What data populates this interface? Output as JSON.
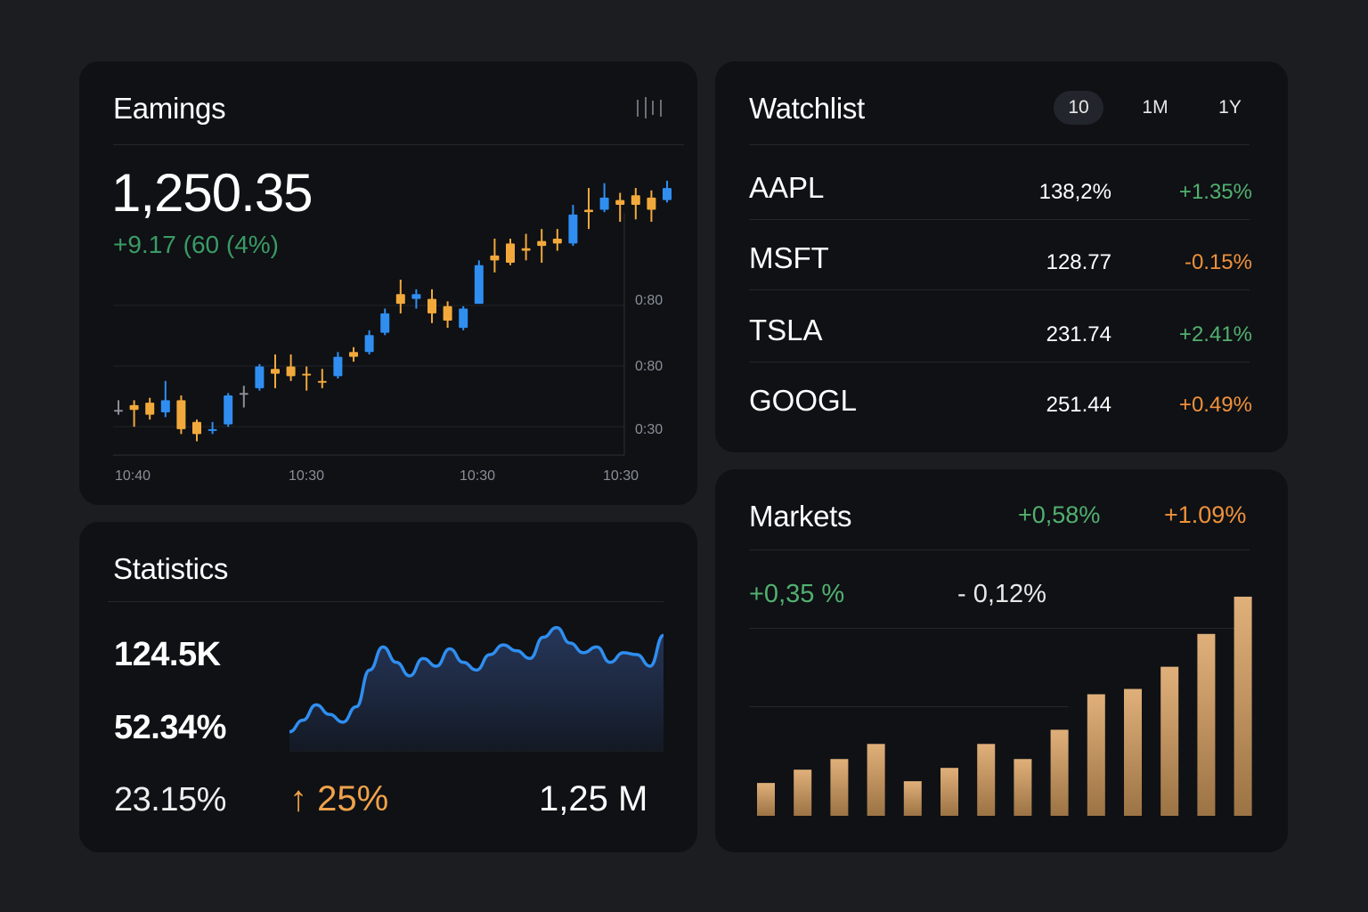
{
  "earnings": {
    "title": "Eamings",
    "menu_icon": "chart-options-icon",
    "price": "1,250.35",
    "change": "+9.17 (60 (4%)",
    "y_labels": [
      "0:80",
      "0:80",
      "0:30"
    ],
    "x_labels": [
      "10:40",
      "10:30",
      "10:30",
      "10:30"
    ]
  },
  "watchlist": {
    "title": "Watchlist",
    "tabs": [
      {
        "label": "10",
        "active": true
      },
      {
        "label": "1M",
        "active": false
      },
      {
        "label": "1Y",
        "active": false
      }
    ],
    "rows": [
      {
        "symbol": "AAPL",
        "price": "138,2%",
        "change": "+1.35%",
        "direction": "up"
      },
      {
        "symbol": "MSFT",
        "price": "128.77",
        "change": "-0.15%",
        "direction": "down"
      },
      {
        "symbol": "TSLA",
        "price": "231.74",
        "change": "+2.41%",
        "direction": "up"
      },
      {
        "symbol": "GOOGL",
        "price": "251.44",
        "change": "+0.49%",
        "direction": "down"
      }
    ]
  },
  "statistics": {
    "title": "Statistics",
    "stat1": "124.5K",
    "stat2": "52.34%",
    "stat3": "23.15%",
    "growth": "↑ 25%",
    "total": "1,25 M"
  },
  "markets": {
    "title": "Markets",
    "head_change_1": "+0,58%",
    "head_change_2": "+1.09%",
    "sub_change_1": "+0,35 %",
    "sub_change_2": "- 0,12%"
  },
  "colors": {
    "background": "#1b1d21",
    "card": "#0f1115",
    "positive": "#52b06f",
    "negative": "#f0913a",
    "candle_up": "#2f8ef0",
    "candle_down": "#f2a93b",
    "bar": "#d6a56a",
    "line": "#2f8ef0"
  },
  "chart_data": [
    {
      "type": "candlestick",
      "title": "Eamings",
      "x": [
        "10:40",
        "10:30",
        "10:30",
        "10:30"
      ],
      "ylim": [
        0,
        100
      ],
      "series": [
        {
          "values": [
            {
              "o": 18,
              "c": 18,
              "h": 22,
              "l": 16,
              "dir": "flat"
            },
            {
              "o": 18,
              "c": 20,
              "h": 22,
              "l": 11,
              "dir": "down"
            },
            {
              "o": 16,
              "c": 21,
              "h": 23,
              "l": 14,
              "dir": "down"
            },
            {
              "o": 17,
              "c": 22,
              "h": 30,
              "l": 15,
              "dir": "up"
            },
            {
              "o": 22,
              "c": 10,
              "h": 24,
              "l": 8,
              "dir": "down"
            },
            {
              "o": 13,
              "c": 8,
              "h": 14,
              "l": 5,
              "dir": "down"
            },
            {
              "o": 10,
              "c": 10,
              "h": 13,
              "l": 8,
              "dir": "up"
            },
            {
              "o": 12,
              "c": 24,
              "h": 25,
              "l": 11,
              "dir": "up"
            },
            {
              "o": 25,
              "c": 25,
              "h": 28,
              "l": 19,
              "dir": "flat"
            },
            {
              "o": 27,
              "c": 36,
              "h": 37,
              "l": 26,
              "dir": "up"
            },
            {
              "o": 35,
              "c": 33,
              "h": 41,
              "l": 27,
              "dir": "down"
            },
            {
              "o": 36,
              "c": 32,
              "h": 41,
              "l": 30,
              "dir": "down"
            },
            {
              "o": 33,
              "c": 33,
              "h": 36,
              "l": 26,
              "dir": "down"
            },
            {
              "o": 30,
              "c": 30,
              "h": 35,
              "l": 27,
              "dir": "down"
            },
            {
              "o": 32,
              "c": 40,
              "h": 42,
              "l": 31,
              "dir": "up"
            },
            {
              "o": 42,
              "c": 40,
              "h": 44,
              "l": 38,
              "dir": "down"
            },
            {
              "o": 42,
              "c": 49,
              "h": 51,
              "l": 41,
              "dir": "up"
            },
            {
              "o": 50,
              "c": 58,
              "h": 60,
              "l": 49,
              "dir": "up"
            },
            {
              "o": 62,
              "c": 66,
              "h": 72,
              "l": 58,
              "dir": "down"
            },
            {
              "o": 66,
              "c": 64,
              "h": 68,
              "l": 60,
              "dir": "up"
            },
            {
              "o": 64,
              "c": 58,
              "h": 68,
              "l": 54,
              "dir": "down"
            },
            {
              "o": 61,
              "c": 55,
              "h": 63,
              "l": 52,
              "dir": "down"
            },
            {
              "o": 52,
              "c": 60,
              "h": 61,
              "l": 51,
              "dir": "up"
            },
            {
              "o": 62,
              "c": 78,
              "h": 80,
              "l": 62,
              "dir": "up"
            },
            {
              "o": 82,
              "c": 80,
              "h": 89,
              "l": 75,
              "dir": "down"
            },
            {
              "o": 79,
              "c": 87,
              "h": 89,
              "l": 78,
              "dir": "down"
            },
            {
              "o": 84,
              "c": 85,
              "h": 91,
              "l": 80,
              "dir": "down"
            },
            {
              "o": 86,
              "c": 88,
              "h": 93,
              "l": 79,
              "dir": "down"
            },
            {
              "o": 87,
              "c": 89,
              "h": 93,
              "l": 84,
              "dir": "down"
            },
            {
              "o": 87,
              "c": 99,
              "h": 103,
              "l": 86,
              "dir": "up"
            },
            {
              "o": 101,
              "c": 100,
              "h": 110,
              "l": 93,
              "dir": "down"
            },
            {
              "o": 101,
              "c": 106,
              "h": 112,
              "l": 100,
              "dir": "up"
            },
            {
              "o": 103,
              "c": 105,
              "h": 108,
              "l": 96,
              "dir": "down"
            },
            {
              "o": 103,
              "c": 107,
              "h": 110,
              "l": 97,
              "dir": "down"
            },
            {
              "o": 101,
              "c": 106,
              "h": 109,
              "l": 96,
              "dir": "down"
            },
            {
              "o": 105,
              "c": 110,
              "h": 113,
              "l": 104,
              "dir": "up"
            }
          ]
        }
      ]
    },
    {
      "type": "area",
      "title": "Statistics",
      "x": [
        0,
        1,
        2,
        3,
        4,
        5,
        6,
        7,
        8,
        9,
        10,
        11,
        12,
        13,
        14,
        15,
        16,
        17,
        18,
        19,
        20,
        21,
        22,
        23,
        24,
        25,
        26,
        27,
        28
      ],
      "series": [
        {
          "values": [
            2,
            8,
            16,
            11,
            7,
            15,
            34,
            46,
            38,
            31,
            40,
            36,
            45,
            38,
            34,
            42,
            47,
            44,
            40,
            51,
            56,
            48,
            43,
            46,
            38,
            43,
            42,
            36,
            52
          ]
        }
      ],
      "ylim": [
        0,
        60
      ]
    },
    {
      "type": "bar",
      "title": "Markets",
      "categories": [
        "1",
        "2",
        "3",
        "4",
        "5",
        "6",
        "7",
        "8",
        "9",
        "10",
        "11",
        "12",
        "13",
        "14"
      ],
      "values": [
        37,
        52,
        64,
        81,
        39,
        54,
        81,
        64,
        97,
        137,
        143,
        168,
        205,
        247
      ],
      "ylim": [
        0,
        260
      ]
    }
  ]
}
